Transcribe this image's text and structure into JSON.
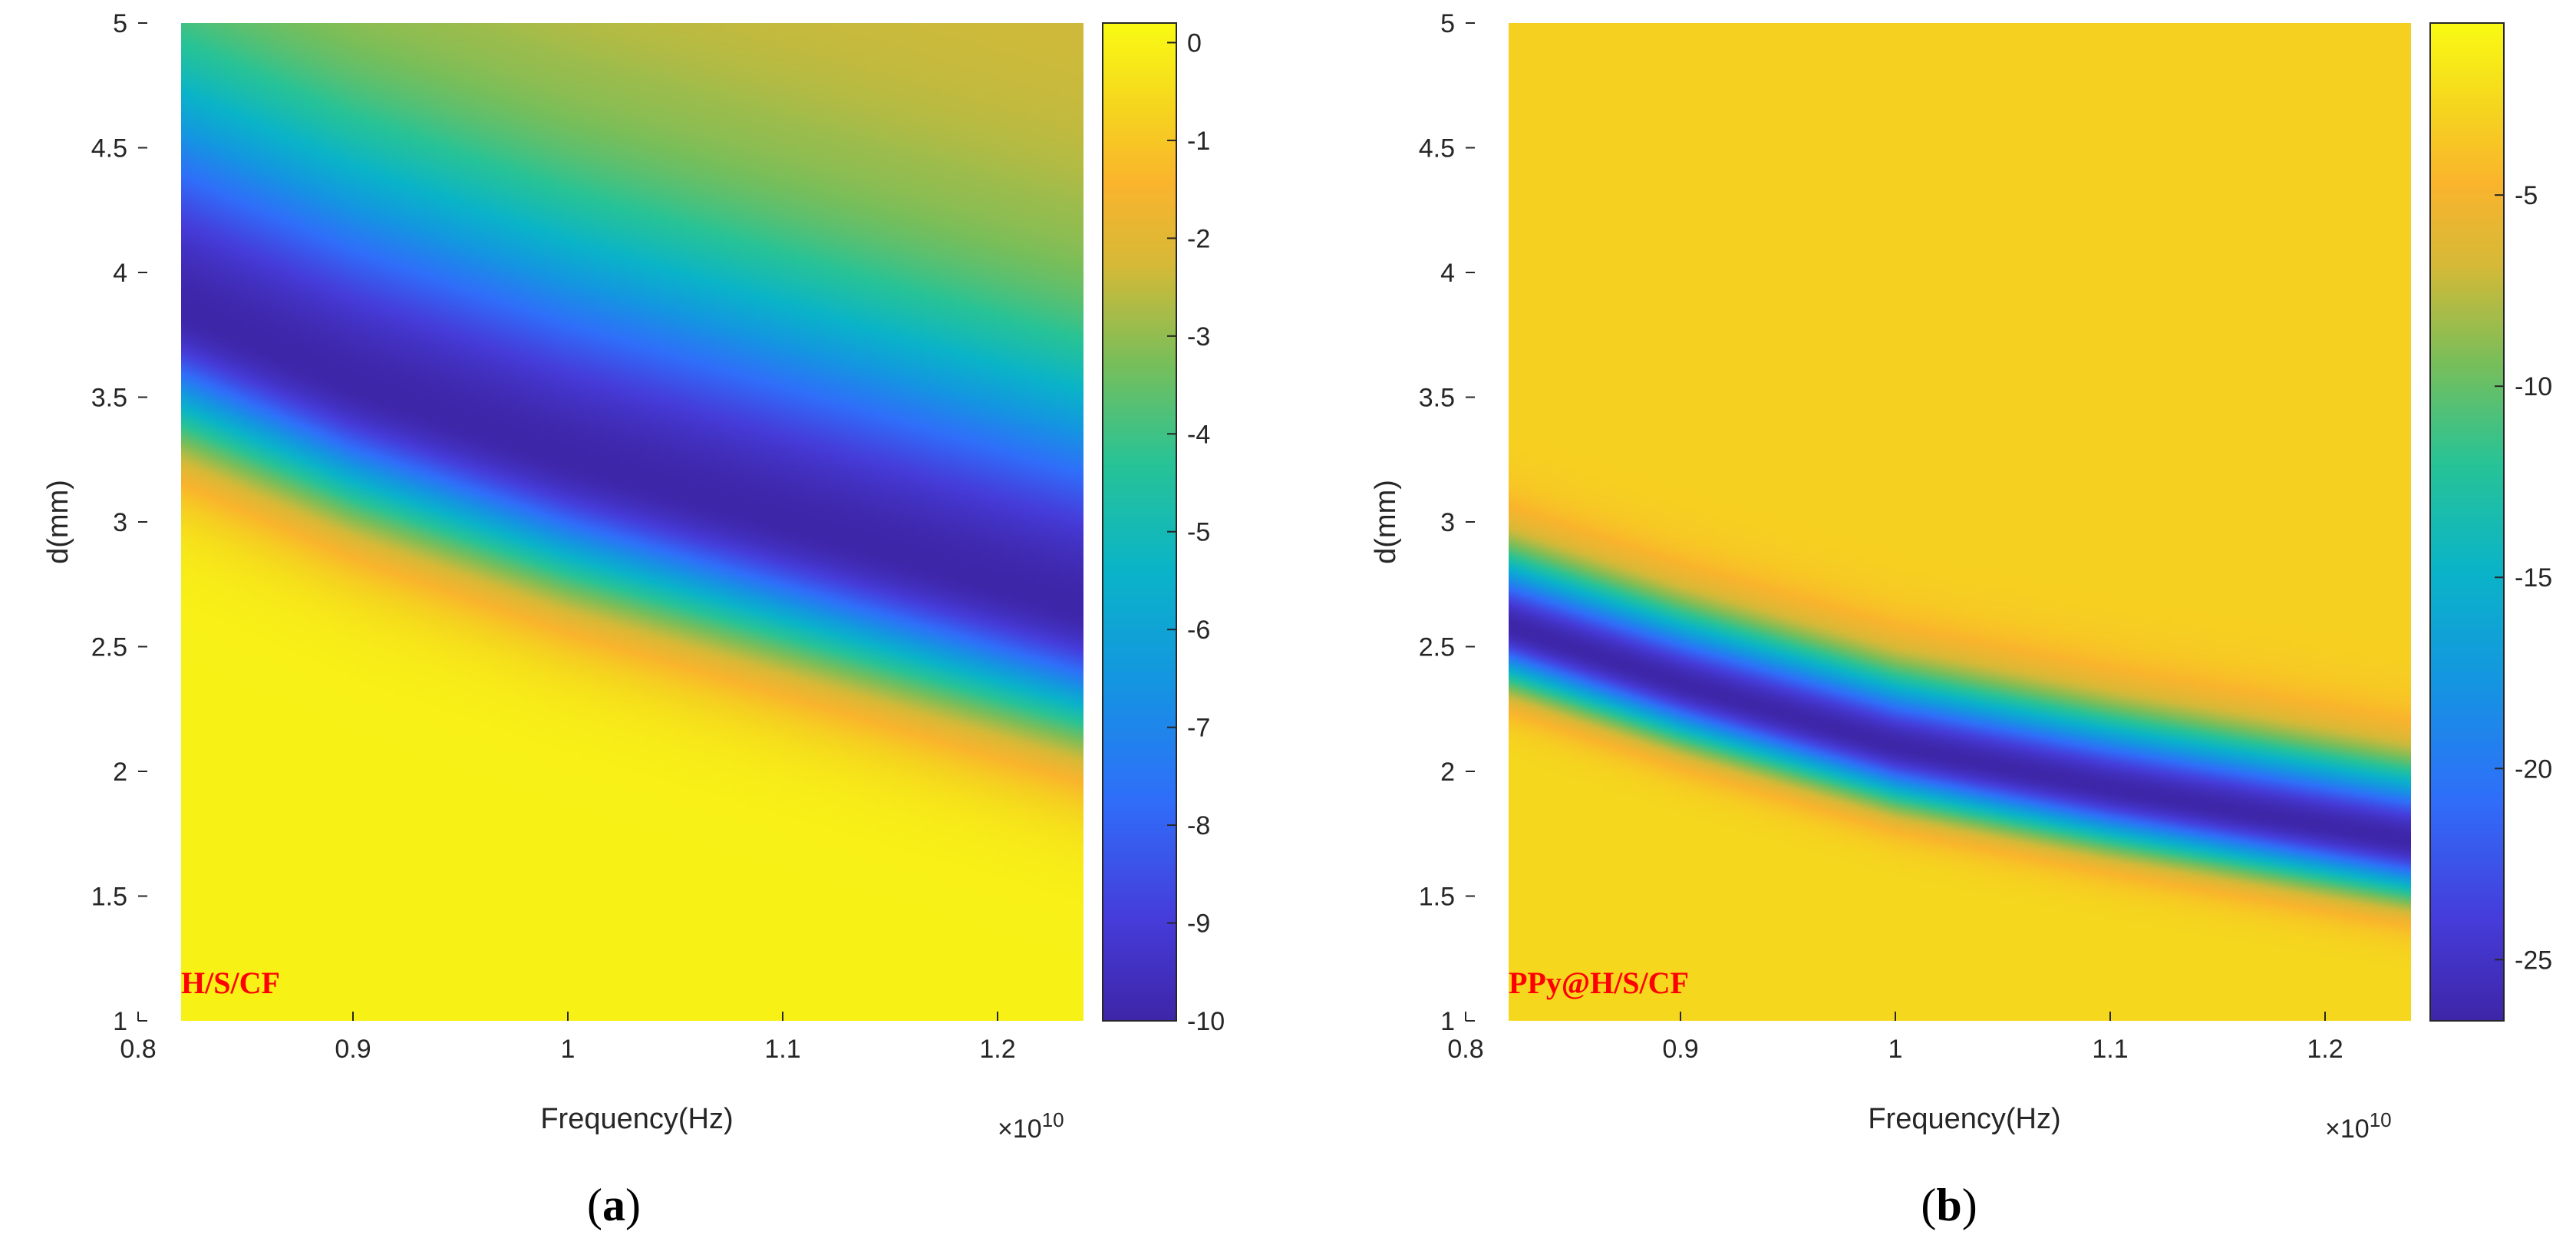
{
  "chart_data": [
    {
      "type": "heatmap",
      "panel": "(a)",
      "caption_label": "a",
      "sample_label": "H/S/CF",
      "xlabel": "Frequency(Hz)",
      "ylabel": "d(mm)",
      "x_multiplier": "×10",
      "x_multiplier_exp": "10",
      "xlim": [
        0.8,
        1.24
      ],
      "ylim": [
        1,
        5
      ],
      "data_xlim": [
        0.82,
        1.24
      ],
      "x_ticks": [
        0.8,
        0.9,
        1,
        1.1,
        1.2
      ],
      "x_tick_labels": [
        "0.8",
        "0.9",
        "1",
        "1.1",
        "1.2"
      ],
      "y_ticks": [
        1,
        1.5,
        2,
        2.5,
        3,
        3.5,
        4,
        4.5,
        5
      ],
      "y_tick_labels": [
        "1",
        "1.5",
        "2",
        "2.5",
        "3",
        "3.5",
        "4",
        "4.5",
        "5"
      ],
      "colorbar": {
        "min": -10,
        "max": 0.2,
        "ticks": [
          0,
          -1,
          -2,
          -3,
          -4,
          -5,
          -6,
          -7,
          -8,
          -9,
          -10
        ],
        "tick_labels": [
          "0",
          "-1",
          "-2",
          "-3",
          "-4",
          "-5",
          "-6",
          "-7",
          "-8",
          "-9",
          "-10"
        ]
      },
      "minimum_ridge": {
        "description": "reflection-loss minimum (d in mm vs frequency)",
        "x": [
          0.82,
          0.9,
          1.0,
          1.1,
          1.24
        ],
        "d_mm": [
          3.85,
          3.55,
          3.25,
          3.0,
          2.65
        ],
        "min_value": -10
      },
      "field_model": {
        "floor": 0.0,
        "far_value_below": 0.0,
        "far_value_above": -2.3,
        "width_below": 0.5,
        "width_above": 1.0
      }
    },
    {
      "type": "heatmap",
      "panel": "(b)",
      "caption_label": "b",
      "sample_label": "PPy@H/S/CF",
      "xlabel": "Frequency(Hz)",
      "ylabel": "d(mm)",
      "x_multiplier": "×10",
      "x_multiplier_exp": "10",
      "xlim": [
        0.8,
        1.24
      ],
      "ylim": [
        1,
        5
      ],
      "data_xlim": [
        0.82,
        1.24
      ],
      "x_ticks": [
        0.8,
        0.9,
        1,
        1.1,
        1.2
      ],
      "x_tick_labels": [
        "0.8",
        "0.9",
        "1",
        "1.1",
        "1.2"
      ],
      "y_ticks": [
        1,
        1.5,
        2,
        2.5,
        3,
        3.5,
        4,
        4.5,
        5
      ],
      "y_tick_labels": [
        "1",
        "1.5",
        "2",
        "2.5",
        "3",
        "3.5",
        "4",
        "4.5",
        "5"
      ],
      "colorbar": {
        "min": -26.6,
        "max": -0.5,
        "ticks": [
          -5,
          -10,
          -15,
          -20,
          -25
        ],
        "tick_labels": [
          "-5",
          "-10",
          "-15",
          "-20",
          "-25"
        ]
      },
      "minimum_ridge": {
        "description": "reflection-loss minimum (d in mm vs frequency)",
        "x": [
          0.82,
          0.9,
          1.0,
          1.1,
          1.24
        ],
        "d_mm": [
          2.58,
          2.35,
          2.1,
          1.93,
          1.72
        ],
        "min_value": -26.6
      },
      "field_model": {
        "floor": -1.5,
        "far_value_below": -2.5,
        "far_value_above": -3.0,
        "width_below": 0.22,
        "width_above": 0.3
      }
    }
  ]
}
